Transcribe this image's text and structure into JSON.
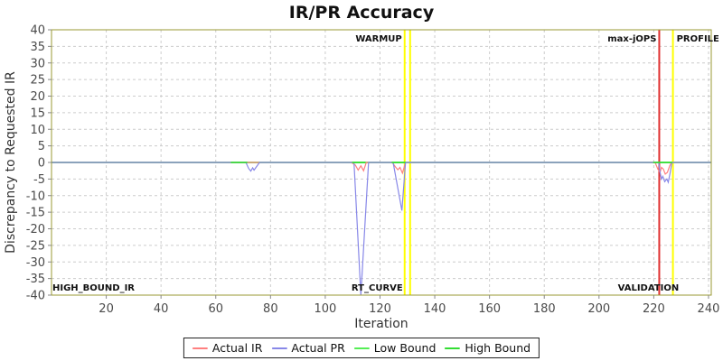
{
  "title": "IR/PR Accuracy",
  "chart_data": {
    "type": "line",
    "title": "IR/PR Accuracy",
    "xlabel": "Iteration",
    "ylabel": "Discrepancy to Requested IR",
    "xlim": [
      0,
      241
    ],
    "ylim": [
      -40,
      40
    ],
    "grid": true,
    "legend_position": "bottom",
    "x_ticks": [
      20,
      40,
      60,
      80,
      100,
      120,
      140,
      160,
      180,
      200,
      220,
      240
    ],
    "y_ticks": [
      40,
      35,
      30,
      25,
      20,
      15,
      10,
      5,
      0,
      -5,
      -10,
      -15,
      -20,
      -25,
      -30,
      -35,
      -40
    ],
    "series": [
      {
        "name": "Actual IR",
        "color": "#ff8080",
        "width": 1.2,
        "z": 2,
        "points": [
          [
            0,
            0
          ],
          [
            109.5,
            0
          ],
          [
            111,
            -0.8
          ],
          [
            112,
            -2.3
          ],
          [
            113,
            -1
          ],
          [
            114,
            -2.5
          ],
          [
            115,
            0
          ],
          [
            124.5,
            0
          ],
          [
            125.5,
            -1.2
          ],
          [
            126.5,
            -2.2
          ],
          [
            127.3,
            -1.5
          ],
          [
            128.2,
            -3.2
          ],
          [
            129.3,
            0
          ],
          [
            220.5,
            0
          ],
          [
            221.5,
            -2
          ],
          [
            222.3,
            -3
          ],
          [
            222.8,
            -1.5
          ],
          [
            223.5,
            -2
          ],
          [
            224.2,
            -3.5
          ],
          [
            225,
            -3
          ],
          [
            225.8,
            -1
          ],
          [
            226.5,
            0
          ],
          [
            241,
            0
          ]
        ]
      },
      {
        "name": "Actual PR",
        "color": "#8888e8",
        "width": 1.2,
        "z": 3,
        "points": [
          [
            0,
            0
          ],
          [
            71,
            0
          ],
          [
            72,
            -1.8
          ],
          [
            72.8,
            -2.6
          ],
          [
            73.5,
            -1.6
          ],
          [
            74,
            -2.3
          ],
          [
            76,
            0
          ],
          [
            110.5,
            0
          ],
          [
            113,
            -40
          ],
          [
            115.8,
            0
          ],
          [
            124.8,
            0
          ],
          [
            128,
            -14.5
          ],
          [
            129.3,
            0
          ],
          [
            221.8,
            0
          ],
          [
            222.3,
            -3
          ],
          [
            222.8,
            -5
          ],
          [
            223.3,
            -4.2
          ],
          [
            224,
            -5.8
          ],
          [
            224.8,
            -5
          ],
          [
            225.3,
            -6
          ],
          [
            226,
            -3
          ],
          [
            226.6,
            0
          ],
          [
            241,
            0
          ]
        ]
      },
      {
        "name": "Low Bound",
        "color": "#55ee55",
        "width": 1.6,
        "z": 0,
        "points": [
          [
            0,
            0
          ],
          [
            241,
            0
          ]
        ]
      },
      {
        "name": "High Bound",
        "color": "#33dd33",
        "width": 1.6,
        "z": 1,
        "points": [
          [
            0,
            0
          ],
          [
            241,
            0
          ]
        ],
        "visible_segments": [
          [
            65.5,
            71.5
          ],
          [
            109.8,
            114.6
          ],
          [
            124.3,
            129.3
          ],
          [
            219.8,
            226.8
          ]
        ]
      }
    ],
    "marker_lines": [
      {
        "iter": 129,
        "color": "#ffff00"
      },
      {
        "iter": 131,
        "color": "#ffff00"
      },
      {
        "iter": 222,
        "color": "#e03030"
      },
      {
        "iter": 227,
        "color": "#ffff00"
      }
    ],
    "marker_labels": [
      {
        "text": "WARMUP",
        "iter": 129,
        "anchor": "end",
        "v": "top",
        "dx": -3
      },
      {
        "text": "max-jOPS",
        "iter": 222,
        "anchor": "end",
        "v": "top",
        "dx": -3
      },
      {
        "text": "PROFILE",
        "iter": 227,
        "anchor": "start",
        "v": "top",
        "dx": 4
      },
      {
        "text": "HIGH_BOUND_IR",
        "iter": 0,
        "anchor": "start",
        "v": "bottom",
        "dx": 1
      },
      {
        "text": "RT_CURVE",
        "iter": 129,
        "anchor": "end",
        "v": "bottom",
        "dx": -2
      },
      {
        "text": "VALIDATION",
        "iter": 222,
        "anchor": "middle",
        "v": "bottom",
        "dx": -12
      }
    ],
    "style": {
      "border_color": "#999933",
      "grid_color": "#cccccc",
      "tick_color": "#888888",
      "tick_label_color": "#4a4a4a",
      "marker_label_color": "#111111",
      "background": "#ffffff"
    }
  }
}
